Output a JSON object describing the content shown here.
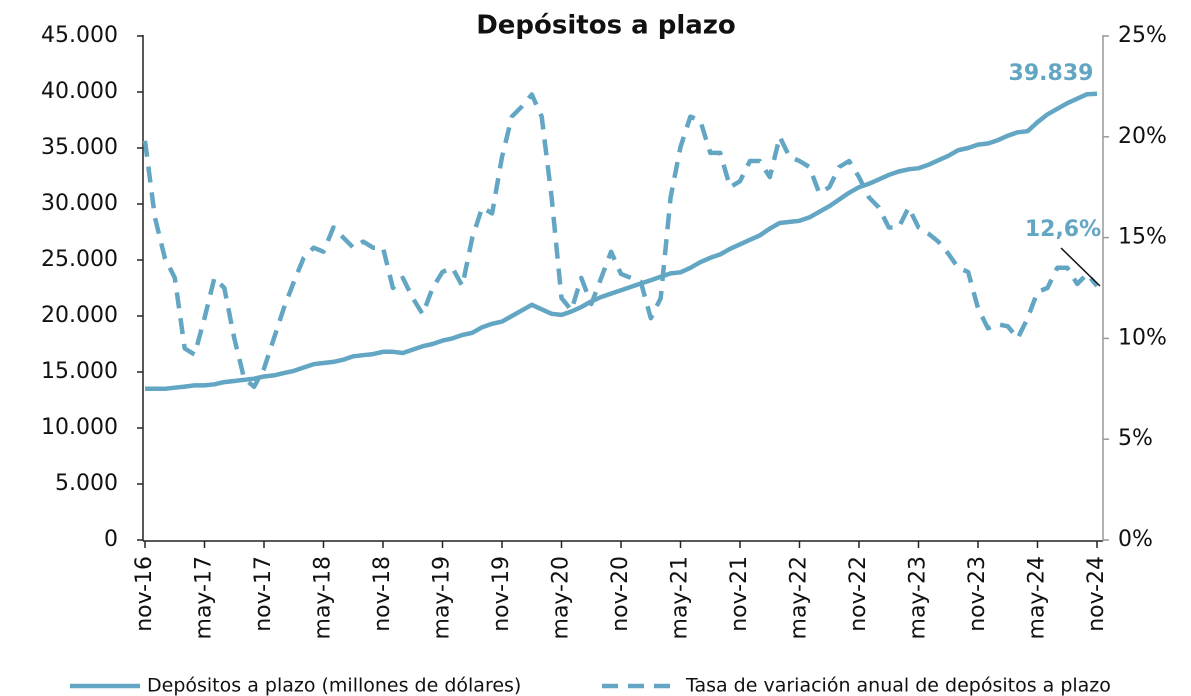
{
  "chart_data": {
    "type": "line",
    "title": "Depósitos a plazo",
    "categories": [
      "nov-16",
      null,
      null,
      null,
      null,
      null,
      "may-17",
      null,
      null,
      null,
      null,
      null,
      "nov-17",
      null,
      null,
      null,
      null,
      null,
      "may-18",
      null,
      null,
      null,
      null,
      null,
      "nov-18",
      null,
      null,
      null,
      null,
      null,
      "may-19",
      null,
      null,
      null,
      null,
      null,
      "nov-19",
      null,
      null,
      null,
      null,
      null,
      "may-20",
      null,
      null,
      null,
      null,
      null,
      "nov-20",
      null,
      null,
      null,
      null,
      null,
      "may-21",
      null,
      null,
      null,
      null,
      null,
      "nov-21",
      null,
      null,
      null,
      null,
      null,
      "may-22",
      null,
      null,
      null,
      null,
      null,
      "nov-22",
      null,
      null,
      null,
      null,
      null,
      "may-23",
      null,
      null,
      null,
      null,
      null,
      "nov-23",
      null,
      null,
      null,
      null,
      null,
      "may-24",
      null,
      null,
      null,
      null,
      null,
      "nov-24"
    ],
    "series": [
      {
        "name": "Depósitos a plazo (millones de dólares)",
        "color": "#62a6c4",
        "style": "solid",
        "values": [
          13500,
          13500,
          13500,
          13600,
          13700,
          13800,
          13800,
          13900,
          14100,
          14200,
          14300,
          14400,
          14600,
          14700,
          14900,
          15100,
          15400,
          15700,
          15800,
          15900,
          16100,
          16400,
          16500,
          16600,
          16800,
          16800,
          16700,
          17000,
          17300,
          17500,
          17800,
          18000,
          18300,
          18500,
          19000,
          19300,
          19500,
          20000,
          20500,
          21000,
          20600,
          20200,
          20100,
          20400,
          20800,
          21300,
          21700,
          22000,
          22300,
          22600,
          22900,
          23200,
          23500,
          23800,
          23900,
          24300,
          24800,
          25200,
          25500,
          26000,
          26400,
          26800,
          27200,
          27800,
          28300,
          28400,
          28500,
          28800,
          29300,
          29800,
          30400,
          31000,
          31500,
          31800,
          32200,
          32600,
          32900,
          33100,
          33200,
          33500,
          33900,
          34300,
          34800,
          35000,
          35300,
          35400,
          35700,
          36100,
          36400,
          36500,
          37300,
          38000,
          38500,
          39000,
          39400,
          39800,
          39839
        ],
        "value_labels": [
          null,
          null,
          null,
          null,
          null,
          null,
          null,
          null,
          null,
          null,
          null,
          null,
          null,
          null,
          null,
          null,
          null,
          null,
          null,
          null,
          null,
          null,
          null,
          null,
          null,
          null,
          null,
          null,
          null,
          null,
          null,
          null,
          null,
          null,
          null,
          null,
          null,
          null,
          null,
          null,
          null,
          null,
          null,
          null,
          null,
          null,
          null,
          null,
          null,
          null,
          null,
          null,
          null,
          null,
          null,
          null,
          null,
          null,
          null,
          null,
          null,
          null,
          null,
          null,
          null,
          null,
          null,
          null,
          null,
          null,
          null,
          null,
          null,
          null,
          null,
          null,
          null,
          null,
          null,
          null,
          null,
          null,
          null,
          null,
          null,
          null,
          null,
          null,
          null,
          null,
          null,
          null,
          null,
          null,
          null,
          null,
          "39.839"
        ]
      },
      {
        "name": "Tasa de variación anual de depósitos a plazo",
        "color": "#62a6c4",
        "style": "dashed",
        "axis": "y2",
        "values": [
          19.8,
          16,
          14,
          13,
          9.5,
          9.2,
          11,
          13,
          12.5,
          10,
          8,
          7.6,
          8.5,
          10,
          11.5,
          12.8,
          14,
          14.5,
          14.3,
          15.5,
          15,
          14.5,
          14.8,
          14.5,
          14.5,
          12.5,
          13,
          12,
          11.2,
          12.5,
          13.3,
          13.5,
          12.6,
          15,
          16.5,
          16.2,
          19,
          21,
          21.5,
          22.1,
          21,
          17,
          12,
          11.4,
          13,
          11.7,
          13,
          14.3,
          13.2,
          13,
          12.8,
          11,
          12,
          17,
          19.5,
          21,
          20.8,
          19.2,
          19.2,
          17.5,
          17.8,
          18.8,
          18.8,
          18,
          20,
          19,
          18.8,
          18.5,
          17.2,
          17.5,
          18.5,
          18.8,
          18,
          17,
          16.5,
          15.5,
          15.5,
          16.5,
          15.5,
          15.2,
          14.8,
          14.2,
          13.5,
          13.3,
          11.5,
          10.5,
          10.7,
          10.6,
          10,
          11,
          12.3,
          12.5,
          13.5,
          13.5,
          12.7,
          13.2,
          12.6
        ],
        "value_labels": [
          null,
          null,
          null,
          null,
          null,
          null,
          null,
          null,
          null,
          null,
          null,
          null,
          null,
          null,
          null,
          null,
          null,
          null,
          null,
          null,
          null,
          null,
          null,
          null,
          null,
          null,
          null,
          null,
          null,
          null,
          null,
          null,
          null,
          null,
          null,
          null,
          null,
          null,
          null,
          null,
          null,
          null,
          null,
          null,
          null,
          null,
          null,
          null,
          null,
          null,
          null,
          null,
          null,
          null,
          null,
          null,
          null,
          null,
          null,
          null,
          null,
          null,
          null,
          null,
          null,
          null,
          null,
          null,
          null,
          null,
          null,
          null,
          null,
          null,
          null,
          null,
          null,
          null,
          null,
          null,
          null,
          null,
          null,
          null,
          null,
          null,
          null,
          null,
          null,
          null,
          null,
          null,
          null,
          null,
          null,
          null,
          "12,6%"
        ]
      }
    ],
    "ylim": [
      0,
      45000
    ],
    "yticks": [
      0,
      {
        "value": 5000,
        "label": "5.000"
      },
      {
        "value": 10000,
        "label": "10.000"
      },
      {
        "value": 15000,
        "label": "15.000"
      },
      {
        "value": 20000,
        "label": "20.000"
      },
      {
        "value": 25000,
        "label": "25.000"
      },
      {
        "value": 30000,
        "label": "30.000"
      },
      {
        "value": 35000,
        "label": "35.000"
      },
      {
        "value": 40000,
        "label": "40.000"
      },
      {
        "value": 45000,
        "label": "45.000"
      }
    ],
    "y2lim": [
      0,
      25
    ],
    "y2ticks": [
      {
        "value": 0,
        "label": "0%"
      },
      {
        "value": 5,
        "label": "5%"
      },
      {
        "value": 10,
        "label": "10%"
      },
      {
        "value": 15,
        "label": "15%"
      },
      {
        "value": 20,
        "label": "20%"
      },
      {
        "value": 25,
        "label": "25%"
      }
    ],
    "grid": false,
    "legend": "bottom"
  }
}
